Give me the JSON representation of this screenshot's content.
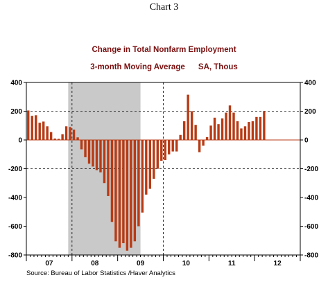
{
  "header": {
    "chart_number": "Chart 3",
    "title": "Change in Total Nonfarm Employment",
    "subtitle": "3-month Moving Average      SA, Thous"
  },
  "footer": {
    "source": "Source:  Bureau of Labor Statistics /Haver Analytics"
  },
  "colors": {
    "bar": "#b83a14",
    "recession_shade": "#c9c9c9",
    "title": "#7a1010",
    "zero_line": "#b83a14"
  },
  "chart_data": {
    "type": "bar",
    "frequency": "monthly",
    "start_month": "Jan 2007",
    "x_tick_labels": [
      "07",
      "08",
      "09",
      "10",
      "11",
      "12"
    ],
    "y_tick_labels": [
      "400",
      "200",
      "0",
      "-200",
      "-400",
      "-600",
      "-800"
    ],
    "ylim": [
      -800,
      400
    ],
    "right_axis_mirror": true,
    "recession_band": {
      "start": "Dec 2007",
      "end": "Jun 2009"
    },
    "dashed_gridlines": {
      "horizontal": [
        200,
        -200
      ],
      "vertical_years": [
        "2008",
        "2010"
      ]
    },
    "values": [
      205,
      168,
      172,
      120,
      128,
      95,
      55,
      10,
      8,
      40,
      95,
      90,
      72,
      18,
      -65,
      -120,
      -165,
      -185,
      -210,
      -225,
      -300,
      -390,
      -570,
      -705,
      -750,
      -718,
      -770,
      -750,
      -705,
      -600,
      -505,
      -380,
      -340,
      -270,
      -200,
      -145,
      -140,
      -100,
      -80,
      -80,
      35,
      130,
      315,
      200,
      105,
      -85,
      -40,
      20,
      100,
      155,
      110,
      150,
      190,
      240,
      190,
      130,
      80,
      95,
      125,
      130,
      160,
      160,
      200
    ]
  }
}
